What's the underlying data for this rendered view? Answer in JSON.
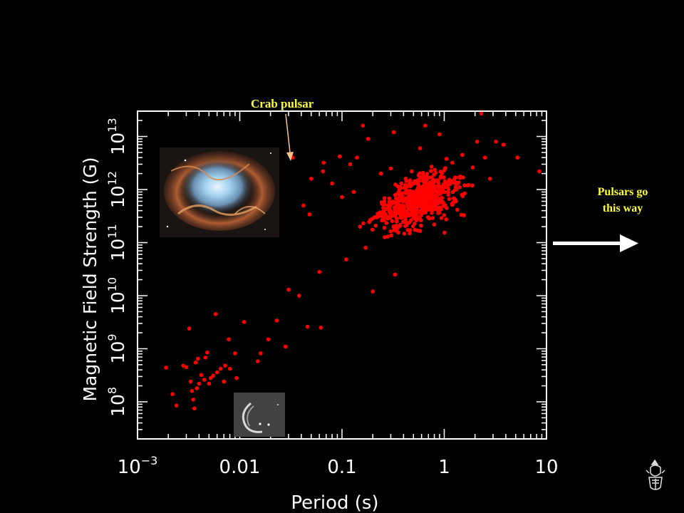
{
  "annotations": {
    "crab_label": "Crab pulsar",
    "direction_line1": "Pulsars go",
    "direction_line2": "this way"
  },
  "colors": {
    "background": "#000000",
    "points": "#ff0000",
    "annotation": "#ffff33",
    "crab_arrow": "#f7c28c"
  },
  "icons": {
    "crest": "university-crest-icon",
    "crab_nebula": "crab-nebula-image",
    "magnetar_image": "pulsar-xray-image"
  },
  "chart_data": {
    "type": "scatter",
    "title": "",
    "xlabel": "Period (s)",
    "ylabel": "Magnetic Field Strength (G)",
    "xscale": "log",
    "yscale": "log",
    "xlim": [
      0.001,
      10
    ],
    "ylim": [
      20000000,
      30000000000000
    ],
    "xticks": [
      {
        "value": 0.001,
        "base": "10",
        "exp": "−3"
      },
      {
        "value": 0.01,
        "label": "0.01"
      },
      {
        "value": 0.1,
        "label": "0.1"
      },
      {
        "value": 1,
        "label": "1"
      },
      {
        "value": 10,
        "label": "10"
      }
    ],
    "yticks": [
      {
        "value": 100000000,
        "base": "10",
        "exp": "8"
      },
      {
        "value": 1000000000,
        "base": "10",
        "exp": "9"
      },
      {
        "value": 10000000000,
        "base": "10",
        "exp": "10"
      },
      {
        "value": 100000000000,
        "base": "10",
        "exp": "11"
      },
      {
        "value": 1000000000000,
        "base": "10",
        "exp": "12"
      },
      {
        "value": 10000000000000,
        "base": "10",
        "exp": "13"
      }
    ],
    "crab_point": [
      0.033,
      4000000000000
    ],
    "series": [
      {
        "points": [
          [
            0.0019,
            440000000.0
          ],
          [
            0.0022,
            140000000.0
          ],
          [
            0.0024,
            85000000.0
          ],
          [
            0.0028,
            480000000.0
          ],
          [
            0.003,
            450000000.0
          ],
          [
            0.0032,
            2400000000.0
          ],
          [
            0.0033,
            240000000.0
          ],
          [
            0.0034,
            160000000.0
          ],
          [
            0.0035,
            110000000.0
          ],
          [
            0.0036,
            75000000.0
          ],
          [
            0.0037,
            550000000.0
          ],
          [
            0.0038,
            180000000.0
          ],
          [
            0.0039,
            650000000.0
          ],
          [
            0.004,
            220000000.0
          ],
          [
            0.0042,
            320000000.0
          ],
          [
            0.0045,
            260000000.0
          ],
          [
            0.0046,
            680000000.0
          ],
          [
            0.0048,
            850000000.0
          ],
          [
            0.005,
            220000000.0
          ],
          [
            0.0052,
            280000000.0
          ],
          [
            0.0055,
            310000000.0
          ],
          [
            0.0058,
            4500000000.0
          ],
          [
            0.006,
            360000000.0
          ],
          [
            0.0065,
            420000000.0
          ],
          [
            0.007,
            240000000.0
          ],
          [
            0.0072,
            480000000.0
          ],
          [
            0.0078,
            1500000000.0
          ],
          [
            0.008,
            420000000.0
          ],
          [
            0.009,
            820000000.0
          ],
          [
            0.0093,
            280000000.0
          ],
          [
            0.011,
            3200000000.0
          ],
          [
            0.015,
            580000000.0
          ],
          [
            0.016,
            820000000.0
          ],
          [
            0.019,
            1500000000.0
          ],
          [
            0.023,
            3400000000.0
          ],
          [
            0.028,
            1100000000.0
          ],
          [
            0.03,
            13000000000.0
          ],
          [
            0.038,
            10000000000.0
          ],
          [
            0.042,
            500000000000.0
          ],
          [
            0.046,
            2600000000.0
          ],
          [
            0.048,
            340000000000.0
          ],
          [
            0.05,
            1600000000000.0
          ],
          [
            0.06,
            28000000000.0
          ],
          [
            0.062,
            2500000000.0
          ],
          [
            0.065,
            2200000000000.0
          ],
          [
            0.066,
            3200000000000.0
          ],
          [
            0.08,
            1300000000000.0
          ],
          [
            0.095,
            4200000000000.0
          ],
          [
            0.1,
            720000000000.0
          ],
          [
            0.11,
            48000000000.0
          ],
          [
            0.12,
            3000000000000.0
          ],
          [
            0.13,
            900000000000.0
          ],
          [
            0.14,
            4000000000000.0
          ],
          [
            0.15,
            200000000000.0
          ],
          [
            0.16,
            16000000000000.0
          ],
          [
            0.17,
            80000000000.0
          ],
          [
            0.18,
            9000000000000.0
          ],
          [
            0.2,
            12000000000.0
          ],
          [
            0.22,
            300000000000.0
          ],
          [
            0.24,
            2000000000000.0
          ],
          [
            0.26,
            600000000000.0
          ],
          [
            0.28,
            130000000000.0
          ],
          [
            0.3,
            2500000000000.0
          ],
          [
            0.32,
            12000000000000.0
          ],
          [
            0.33,
            25000000000.0
          ],
          [
            0.35,
            400000000000.0
          ],
          [
            0.38,
            1300000000000.0
          ],
          [
            0.4,
            700000000000.0
          ],
          [
            0.42,
            1600000000000.0
          ],
          [
            0.45,
            500000000000.0
          ],
          [
            0.48,
            2200000000000.0
          ],
          [
            0.5,
            900000000000.0
          ],
          [
            0.52,
            300000000000.0
          ],
          [
            0.55,
            1500000000000.0
          ],
          [
            0.58,
            6000000000000.0
          ],
          [
            0.6,
            800000000000.0
          ],
          [
            0.65,
            16000000000000.0
          ],
          [
            0.7,
            1100000000000.0
          ],
          [
            0.75,
            2700000000000.0
          ],
          [
            0.8,
            500000000000.0
          ],
          [
            0.85,
            1500000000000.0
          ],
          [
            0.9,
            11000000000000.0
          ],
          [
            0.95,
            700000000000.0
          ],
          [
            1,
            2300000000000.0
          ],
          [
            1.1,
            1000000000000.0
          ],
          [
            1.2,
            3200000000000.0
          ],
          [
            1.3,
            600000000000.0
          ],
          [
            1.4,
            1700000000000.0
          ],
          [
            1.5,
            4500000000000.0
          ],
          [
            1.7,
            1200000000000.0
          ],
          [
            1.9,
            2600000000000.0
          ],
          [
            2.1,
            8000000000000.0
          ],
          [
            2.3,
            27000000000000.0
          ],
          [
            2.5,
            4000000000000.0
          ],
          [
            2.8,
            1600000000000.0
          ],
          [
            3.2,
            8000000000000.0
          ],
          [
            3.8,
            7000000000000.0
          ],
          [
            5.2,
            4000000000000.0
          ],
          [
            8.5,
            2200000000000.0
          ]
        ]
      }
    ]
  }
}
